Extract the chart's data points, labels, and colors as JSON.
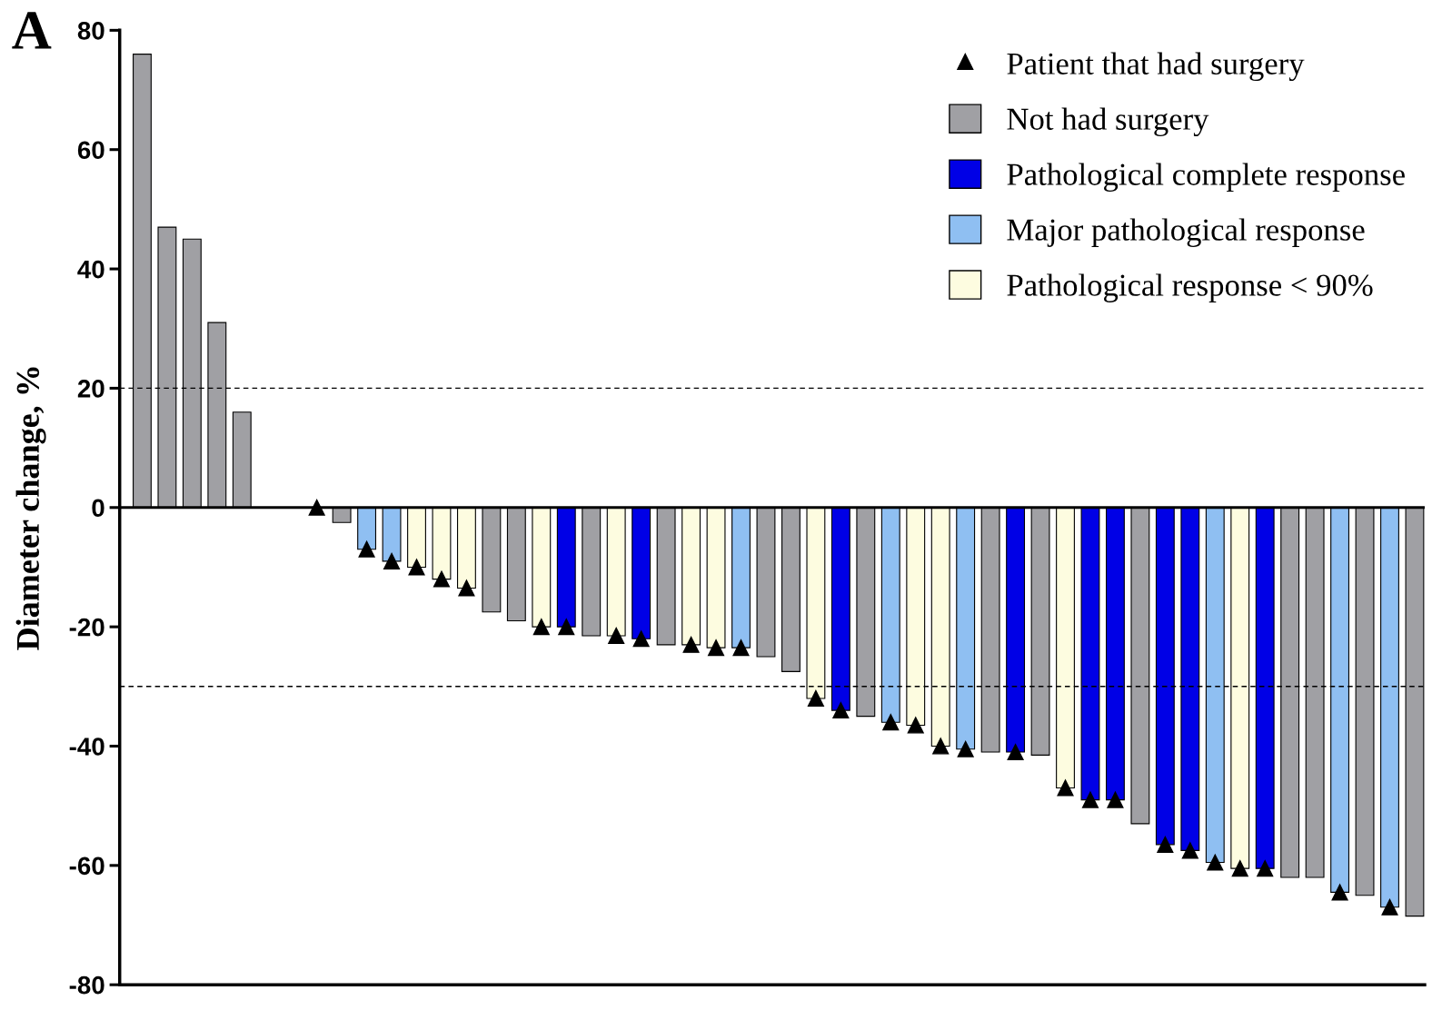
{
  "chart_data": {
    "type": "bar",
    "ylabel": "Diameter change, %",
    "annotations": [
      "A"
    ],
    "categories": [
      null,
      null,
      null,
      null,
      null,
      null,
      null,
      null,
      null,
      null,
      null,
      null,
      null,
      null,
      null,
      null,
      null,
      null,
      null,
      null,
      null,
      null,
      null,
      null,
      null,
      null,
      null,
      null,
      null,
      null,
      null,
      null,
      null,
      null,
      null,
      null,
      null,
      null,
      null,
      null,
      null,
      null,
      null,
      null,
      null,
      null,
      null,
      null,
      null,
      null,
      null,
      null
    ],
    "series": [
      {
        "name": "Patient that had surgery",
        "type": "scatter",
        "color": "#000000",
        "marker": "triangle",
        "values": [
          null,
          null,
          null,
          null,
          null,
          null,
          null,
          0,
          null,
          -7,
          -9,
          -10,
          -12,
          -13.5,
          null,
          null,
          -20,
          -20,
          null,
          -21.5,
          -22,
          null,
          -23,
          -23.5,
          -23.5,
          null,
          null,
          -32,
          -34,
          null,
          -36,
          -36.5,
          -40,
          -40.5,
          null,
          -41,
          null,
          -47,
          -49,
          -49,
          null,
          -56.5,
          -57.5,
          -59.5,
          -60.5,
          -60.5,
          null,
          null,
          -64.5,
          null,
          -67,
          null
        ]
      },
      {
        "name": "Not had surgery",
        "color": "#a0a0a4",
        "values": [
          76,
          47,
          45,
          31,
          16,
          null,
          null,
          null,
          -2.5,
          null,
          null,
          null,
          null,
          null,
          -17.5,
          -19,
          null,
          null,
          -21.5,
          null,
          null,
          -23,
          null,
          null,
          null,
          -25,
          -27.5,
          null,
          null,
          -35,
          null,
          null,
          null,
          null,
          -41,
          null,
          -41.5,
          null,
          null,
          null,
          -53,
          null,
          null,
          null,
          null,
          null,
          -62,
          -62,
          null,
          -65,
          null,
          -68.5
        ]
      },
      {
        "name": "Pathological complete response",
        "color": "#0000e6",
        "values": [
          null,
          null,
          null,
          null,
          null,
          null,
          null,
          null,
          null,
          null,
          null,
          null,
          null,
          null,
          null,
          null,
          null,
          -20,
          null,
          null,
          -22,
          null,
          null,
          null,
          null,
          null,
          null,
          null,
          -34,
          null,
          null,
          null,
          null,
          null,
          null,
          -41,
          null,
          null,
          -49,
          -49,
          null,
          -56.5,
          -57.5,
          null,
          null,
          -60.5,
          null,
          null,
          null,
          null,
          null,
          null
        ]
      },
      {
        "name": "Major pathological response",
        "color": "#8fbff2",
        "values": [
          null,
          null,
          null,
          null,
          null,
          null,
          null,
          null,
          null,
          -7,
          -9,
          null,
          null,
          null,
          null,
          null,
          null,
          null,
          null,
          null,
          null,
          null,
          null,
          null,
          -23.5,
          null,
          null,
          null,
          null,
          null,
          -36,
          null,
          null,
          -40.5,
          null,
          null,
          null,
          null,
          null,
          null,
          null,
          null,
          null,
          -59.5,
          null,
          null,
          null,
          null,
          -64.5,
          null,
          -67,
          null
        ]
      },
      {
        "name": "Pathological response < 90%",
        "color": "#fdfce0",
        "values": [
          null,
          null,
          null,
          null,
          null,
          null,
          null,
          null,
          null,
          null,
          null,
          -10,
          -12,
          -13.5,
          null,
          null,
          -20,
          null,
          null,
          -21.5,
          null,
          null,
          -23,
          -23.5,
          null,
          null,
          null,
          -32,
          null,
          null,
          null,
          -36.5,
          -40,
          null,
          null,
          null,
          null,
          -47,
          null,
          null,
          null,
          null,
          null,
          null,
          -60.5,
          null,
          null,
          null,
          null,
          null,
          null,
          null
        ]
      }
    ],
    "ylim": [
      -80,
      80
    ],
    "yticks": [
      -80,
      -60,
      -40,
      -20,
      0,
      20,
      40,
      60,
      80
    ],
    "ref_lines": [
      {
        "axis": "y",
        "value": 0,
        "line_style": "solid",
        "color": "#000000"
      },
      {
        "axis": "y",
        "value": 20,
        "line_style": "dashed",
        "color": "#000000"
      },
      {
        "axis": "y",
        "value": -30,
        "line_style": "dashed",
        "color": "#000000"
      }
    ],
    "legend": "top right",
    "grid": false
  }
}
